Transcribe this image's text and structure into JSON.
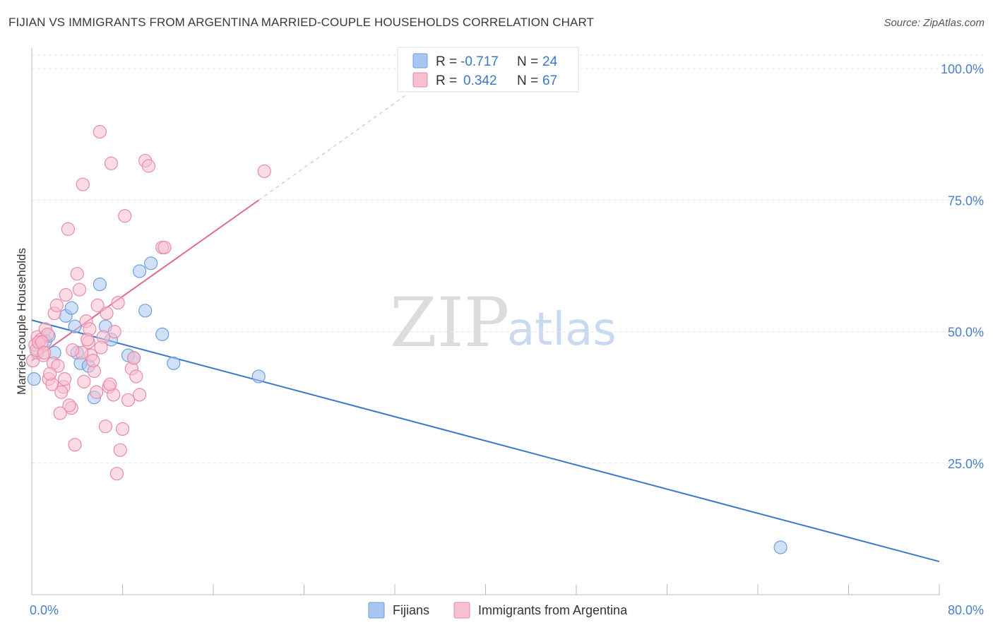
{
  "chart_data": {
    "type": "scatter",
    "title": "FIJIAN VS IMMIGRANTS FROM ARGENTINA MARRIED-COUPLE HOUSEHOLDS CORRELATION CHART",
    "source": "Source: ZipAtlas.com",
    "xlabel": "",
    "ylabel": "Married-couple Households",
    "xlim": [
      0,
      80
    ],
    "ylim": [
      0,
      105
    ],
    "x_tick_labels": [
      "0.0%",
      "80.0%"
    ],
    "y_ticks": [
      25,
      50,
      75,
      100
    ],
    "y_tick_labels": [
      "25.0%",
      "50.0%",
      "75.0%",
      "100.0%"
    ],
    "grid": true,
    "legend_position": "top-center",
    "watermark": {
      "zip": "ZIP",
      "atlas": "atlas"
    },
    "legend": [
      {
        "r_label": "R =",
        "r_value": "-0.717",
        "n_label": "N =",
        "n_value": "24"
      },
      {
        "r_label": "R =",
        "r_value": "0.342",
        "n_label": "N =",
        "n_value": "67"
      }
    ],
    "series": [
      {
        "name": "Fijians",
        "color": "#a7c6f0",
        "stroke": "#6f9fdc",
        "line_color": "#3a78c8",
        "trend": {
          "x0": 0,
          "y0": 52.2,
          "x1": 80,
          "y1": 6.3
        },
        "points": [
          [
            0.2,
            41.0
          ],
          [
            0.5,
            46.0
          ],
          [
            1.2,
            48.2
          ],
          [
            1.5,
            49.2
          ],
          [
            3.0,
            53.0
          ],
          [
            3.5,
            54.5
          ],
          [
            3.8,
            51.0
          ],
          [
            4.0,
            46.0
          ],
          [
            4.3,
            44.0
          ],
          [
            5.0,
            43.5
          ],
          [
            5.5,
            37.5
          ],
          [
            6.0,
            59.0
          ],
          [
            6.5,
            51.0
          ],
          [
            7.0,
            48.5
          ],
          [
            8.5,
            45.5
          ],
          [
            9.0,
            45.0
          ],
          [
            9.5,
            61.5
          ],
          [
            10.0,
            54.0
          ],
          [
            10.5,
            63.0
          ],
          [
            11.5,
            49.5
          ],
          [
            12.5,
            44.0
          ],
          [
            20.0,
            41.5
          ],
          [
            66.0,
            9.0
          ],
          [
            2.0,
            46.0
          ]
        ]
      },
      {
        "name": "Immigrants from Argentina",
        "color": "#f7bfd0",
        "stroke": "#e98aa8",
        "line_color": "#e06a90",
        "trend": {
          "x0": 0,
          "y0": 44.5,
          "x1": 20,
          "y1": 75.0
        },
        "trend_dashed": {
          "x0": 20,
          "y0": 75.0,
          "x1": 33,
          "y1": 95.0
        },
        "points": [
          [
            0.1,
            44.5
          ],
          [
            0.3,
            47.5
          ],
          [
            0.5,
            49.0
          ],
          [
            0.8,
            48.5
          ],
          [
            1.0,
            45.5
          ],
          [
            1.2,
            50.5
          ],
          [
            1.5,
            41.0
          ],
          [
            1.8,
            40.0
          ],
          [
            2.0,
            53.5
          ],
          [
            2.2,
            55.0
          ],
          [
            2.5,
            34.5
          ],
          [
            2.8,
            39.5
          ],
          [
            3.0,
            57.0
          ],
          [
            3.2,
            69.5
          ],
          [
            3.5,
            35.5
          ],
          [
            3.8,
            28.5
          ],
          [
            4.0,
            61.0
          ],
          [
            4.2,
            58.0
          ],
          [
            4.5,
            78.0
          ],
          [
            4.8,
            52.0
          ],
          [
            5.0,
            48.0
          ],
          [
            5.2,
            45.5
          ],
          [
            5.5,
            42.5
          ],
          [
            5.8,
            55.0
          ],
          [
            6.0,
            88.0
          ],
          [
            6.3,
            49.0
          ],
          [
            6.5,
            32.0
          ],
          [
            6.8,
            39.5
          ],
          [
            7.0,
            82.0
          ],
          [
            7.2,
            38.0
          ],
          [
            7.5,
            23.0
          ],
          [
            7.8,
            27.5
          ],
          [
            8.0,
            31.5
          ],
          [
            8.2,
            72.0
          ],
          [
            8.5,
            37.0
          ],
          [
            8.8,
            43.0
          ],
          [
            9.0,
            45.0
          ],
          [
            9.2,
            41.5
          ],
          [
            9.5,
            38.0
          ],
          [
            10.0,
            82.5
          ],
          [
            10.3,
            81.5
          ],
          [
            11.5,
            66.0
          ],
          [
            11.7,
            66.0
          ],
          [
            0.4,
            46.5
          ],
          [
            0.6,
            48.0
          ],
          [
            1.4,
            49.5
          ],
          [
            1.9,
            44.0
          ],
          [
            2.3,
            43.5
          ],
          [
            2.6,
            38.5
          ],
          [
            3.3,
            36.0
          ],
          [
            4.4,
            46.0
          ],
          [
            4.6,
            40.5
          ],
          [
            5.1,
            50.5
          ],
          [
            5.4,
            44.5
          ],
          [
            6.1,
            47.0
          ],
          [
            6.6,
            53.5
          ],
          [
            7.3,
            50.0
          ],
          [
            20.5,
            80.5
          ],
          [
            4.9,
            48.5
          ],
          [
            0.9,
            48.0
          ],
          [
            1.6,
            42.0
          ],
          [
            2.9,
            41.0
          ],
          [
            3.6,
            46.5
          ],
          [
            6.9,
            40.0
          ],
          [
            5.7,
            38.5
          ],
          [
            1.1,
            46.0
          ],
          [
            7.6,
            55.5
          ]
        ]
      }
    ]
  }
}
